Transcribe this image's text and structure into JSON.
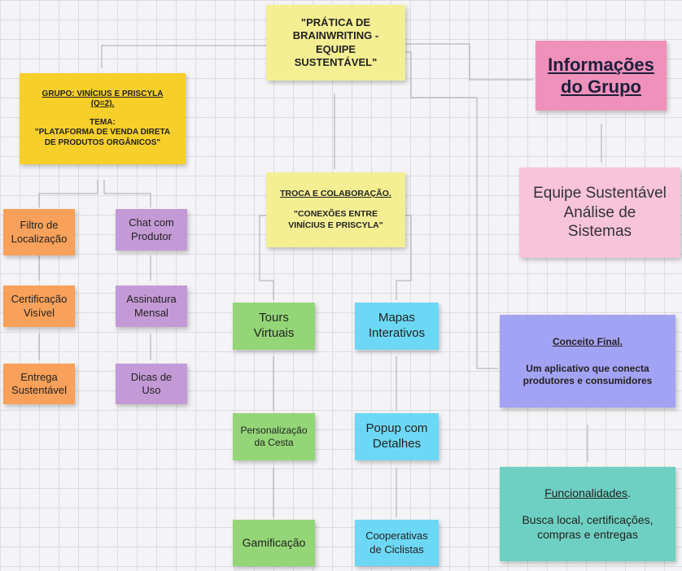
{
  "title_note": {
    "text": "\"PRÁTICA DE\nBRAINWRITING -\nEQUIPE\nSUSTENTÁVEL\""
  },
  "group_note": {
    "heading": "GRUPO: VINÍCIUS E PRISCYLA\n(Q=2).",
    "tema_label": "TEMA:",
    "tema_text": "\"PLATAFORMA DE VENDA DIRETA\nDE PRODUTOS ORGÂNICOS\""
  },
  "exchange_note": {
    "heading": "TROCA E COLABORAÇÃO.",
    "text": "\"CONEXÕES ENTRE\nVINÍCIUS E PRISCYLA\""
  },
  "info_note": {
    "text": "Informações\ndo Grupo"
  },
  "team_note": {
    "text": "Equipe Sustentável\nAnálise de\nSistemas"
  },
  "concept_note": {
    "heading": "Conceito Final.",
    "text": "Um aplicativo que conecta\nprodutores e consumidores"
  },
  "features_note": {
    "heading": "Funcionalidades",
    "heading_dot": ".",
    "text": "Busca local, certificações,\ncompras e entregas"
  },
  "orange_column": [
    "Filtro de\nLocalização",
    "Certificação\nVisível",
    "Entrega\nSustentável"
  ],
  "purple_column": [
    "Chat com\nProdutor",
    "Assinatura\nMensal",
    "Dicas de\nUso"
  ],
  "green_column": [
    "Tours\nVirtuais",
    "Personalizaçãо\nda Cesta",
    "Gamificação"
  ],
  "cyan_column": [
    "Mapas\nInterativos",
    "Popup com\nDetalhes",
    "Cooperativas\nde Ciclistas"
  ],
  "colors": {
    "yellow": "#f5ef94",
    "gold": "#f7cf2a",
    "orange": "#f9a15a",
    "purple": "#c49ad6",
    "green": "#94d677",
    "cyan": "#6dd8f5",
    "pink": "#ef91bb",
    "light_pink": "#f8c4da",
    "lavender": "#a3a3f5",
    "teal": "#6ed0c3",
    "connector": "#a9a9b0"
  }
}
